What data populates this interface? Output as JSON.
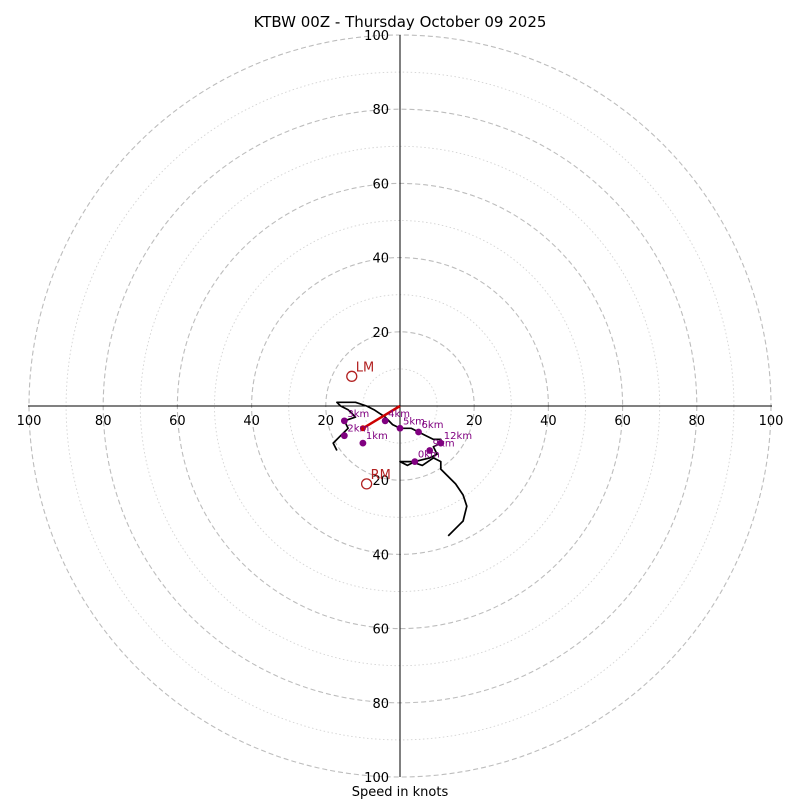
{
  "chart_data": {
    "type": "hodograph",
    "title": "KTBW 00Z - Thursday October 09 2025",
    "xlabel": "Speed in knots",
    "units": "knots",
    "xlim": [
      -100,
      100
    ],
    "ylim": [
      -100,
      100
    ],
    "ring_speeds_dashed": [
      20,
      40,
      60,
      80,
      100
    ],
    "ring_speeds_dotted": [
      10,
      30,
      50,
      70,
      90
    ],
    "x_tick_labels": [
      "100",
      "80",
      "60",
      "40",
      "20",
      "20",
      "40",
      "60",
      "80",
      "100"
    ],
    "x_tick_values": [
      -100,
      -80,
      -60,
      -40,
      -20,
      20,
      40,
      60,
      80,
      100
    ],
    "y_tick_labels": [
      "100",
      "80",
      "60",
      "40",
      "20",
      "20",
      "40",
      "60",
      "80",
      "100"
    ],
    "y_tick_values": [
      100,
      80,
      60,
      40,
      20,
      -20,
      -40,
      -60,
      -80,
      -100
    ],
    "hodograph_trace": [
      [
        -17,
        -12
      ],
      [
        -18,
        -10
      ],
      [
        -16,
        -8
      ],
      [
        -14,
        -6
      ],
      [
        -15,
        -4
      ],
      [
        -12,
        -3
      ],
      [
        -14,
        -1
      ],
      [
        -16,
        0
      ],
      [
        -17,
        1
      ],
      [
        -14,
        1
      ],
      [
        -12,
        1
      ],
      [
        -9,
        0
      ],
      [
        -7,
        -1
      ],
      [
        -4,
        -3
      ],
      [
        -2,
        -5
      ],
      [
        0,
        -6
      ],
      [
        3,
        -6
      ],
      [
        5,
        -7
      ],
      [
        7,
        -8
      ],
      [
        9,
        -9
      ],
      [
        11,
        -9
      ],
      [
        11,
        -10
      ],
      [
        9,
        -11
      ],
      [
        10,
        -13
      ],
      [
        8,
        -14
      ],
      [
        4,
        -15
      ],
      [
        2,
        -16
      ],
      [
        0,
        -15
      ],
      [
        3,
        -15
      ],
      [
        6,
        -16
      ],
      [
        9,
        -14
      ],
      [
        11,
        -15
      ],
      [
        11,
        -17
      ],
      [
        13,
        -19
      ],
      [
        15,
        -21
      ],
      [
        17,
        -24
      ],
      [
        18,
        -27
      ],
      [
        17,
        -31
      ],
      [
        16,
        -32
      ],
      [
        13,
        -35
      ]
    ],
    "altitude_markers": [
      {
        "label": "0km",
        "u": 4,
        "v": -15
      },
      {
        "label": "1km",
        "u": -10,
        "v": -10
      },
      {
        "label": "2km",
        "u": -15,
        "v": -8
      },
      {
        "label": "3km",
        "u": -15,
        "v": -4
      },
      {
        "label": "4km",
        "u": -4,
        "v": -4
      },
      {
        "label": "5km",
        "u": 0,
        "v": -6
      },
      {
        "label": "6km",
        "u": 5,
        "v": -7
      },
      {
        "label": "9km",
        "u": 8,
        "v": -12
      },
      {
        "label": "12km",
        "u": 11,
        "v": -10
      }
    ],
    "storm_motion": [
      {
        "label": "LM",
        "u": -13,
        "v": 8
      },
      {
        "label": "RM",
        "u": -9,
        "v": -21
      }
    ],
    "bulk_shear_vector": {
      "from": [
        -10,
        -6
      ],
      "to": [
        0,
        0
      ]
    },
    "colors": {
      "trace": "#000000",
      "altitude": "#800080",
      "storm_motion": "#b22222",
      "shear": "#cc0000",
      "ring": "#bdbdbd"
    }
  }
}
